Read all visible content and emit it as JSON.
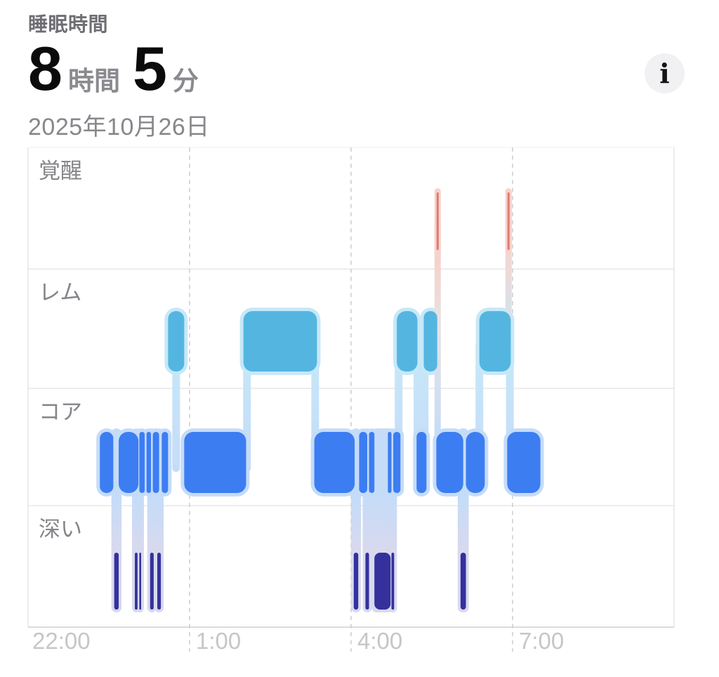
{
  "header": {
    "title": "睡眠時間",
    "value": {
      "hours": "8",
      "hours_unit": "時間",
      "minutes": "5",
      "minutes_unit": "分"
    },
    "date": "2025年10月26日",
    "info_icon_glyph": "i"
  },
  "chart_data": {
    "type": "hypnogram",
    "title": "睡眠時間 8時間5分 2025年10月26日",
    "stages": [
      {
        "id": "awake",
        "label": "覚醒",
        "color": "#DF7A6F",
        "halo": "#F6D2CC"
      },
      {
        "id": "rem",
        "label": "レム",
        "color": "#54B6E0",
        "halo": "#C6E8F8"
      },
      {
        "id": "core",
        "label": "コア",
        "color": "#3C7DF2",
        "halo": "#C5DCF8"
      },
      {
        "id": "deep",
        "label": "深い",
        "color": "#34319D",
        "halo": "#D8D9EE"
      }
    ],
    "x_axis": {
      "window_minutes": 720,
      "start_label": "22:00",
      "ticks": [
        {
          "label": "22:00",
          "min": 0
        },
        {
          "label": "1:00",
          "min": 180
        },
        {
          "label": "4:00",
          "min": 360
        },
        {
          "label": "7:00",
          "min": 540
        }
      ],
      "grid_dashed": true
    },
    "segments": {
      "awake": [
        {
          "start": 454,
          "end": 459,
          "descends_to": "core"
        },
        {
          "start": 533,
          "end": 538,
          "descends_to": "rem"
        }
      ],
      "rem": [
        {
          "start": 156,
          "end": 174
        },
        {
          "start": 240,
          "end": 322
        },
        {
          "start": 411,
          "end": 434
        },
        {
          "start": 441,
          "end": 456
        },
        {
          "start": 503,
          "end": 538
        }
      ],
      "core": [
        {
          "start": 80,
          "end": 95
        },
        {
          "start": 101,
          "end": 123
        },
        {
          "start": 124,
          "end": 130
        },
        {
          "start": 132,
          "end": 137
        },
        {
          "start": 139,
          "end": 146
        },
        {
          "start": 149,
          "end": 156
        },
        {
          "start": 174,
          "end": 243
        },
        {
          "start": 319,
          "end": 364
        },
        {
          "start": 369,
          "end": 378
        },
        {
          "start": 380,
          "end": 386
        },
        {
          "start": 401,
          "end": 405
        },
        {
          "start": 407,
          "end": 415
        },
        {
          "start": 433,
          "end": 444
        },
        {
          "start": 455,
          "end": 485
        },
        {
          "start": 488,
          "end": 509
        },
        {
          "start": 534,
          "end": 571
        }
      ],
      "deep": [
        {
          "start": 96,
          "end": 101
        },
        {
          "start": 119,
          "end": 122
        },
        {
          "start": 124,
          "end": 126
        },
        {
          "start": 136,
          "end": 140
        },
        {
          "start": 144,
          "end": 148
        },
        {
          "start": 363,
          "end": 368
        },
        {
          "start": 376,
          "end": 380
        },
        {
          "start": 386,
          "end": 404
        },
        {
          "start": 405,
          "end": 408
        },
        {
          "start": 482,
          "end": 488
        }
      ]
    },
    "connectors": [
      {
        "min": 165,
        "between": [
          "rem",
          "core"
        ]
      },
      {
        "min": 244,
        "between": [
          "rem",
          "core"
        ]
      },
      {
        "min": 320,
        "between": [
          "rem",
          "core"
        ]
      },
      {
        "min": 413,
        "between": [
          "rem",
          "core"
        ]
      },
      {
        "min": 434,
        "between": [
          "rem",
          "core"
        ]
      },
      {
        "min": 442,
        "between": [
          "rem",
          "core"
        ]
      },
      {
        "min": 503,
        "between": [
          "rem",
          "core"
        ]
      },
      {
        "min": 537,
        "between": [
          "rem",
          "core"
        ]
      }
    ]
  }
}
